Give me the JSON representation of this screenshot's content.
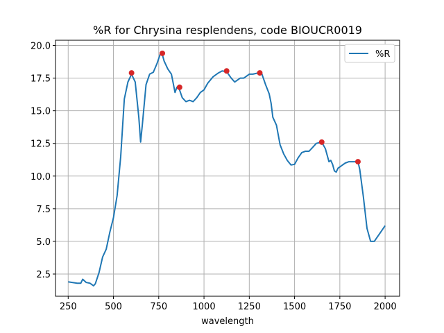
{
  "chart_data": {
    "type": "line",
    "title": "%R for Chrysina resplendens, code BIOUCR0019",
    "xlabel": "wavelength",
    "ylabel": "",
    "xlim": [
      180,
      2080
    ],
    "ylim": [
      0.8,
      20.4
    ],
    "grid": true,
    "legend_placement": "top-right",
    "x_ticks": [
      250,
      500,
      750,
      1000,
      1250,
      1500,
      1750,
      2000
    ],
    "y_ticks": [
      2.5,
      5.0,
      7.5,
      10.0,
      12.5,
      15.0,
      17.5,
      20.0
    ],
    "x_tick_labels": [
      "250",
      "500",
      "750",
      "1000",
      "1250",
      "1500",
      "1750",
      "2000"
    ],
    "y_tick_labels": [
      "2.5",
      "5.0",
      "7.5",
      "10.0",
      "12.5",
      "15.0",
      "17.5",
      "20.0"
    ],
    "series": [
      {
        "name": "%R",
        "color": "#1f77b4",
        "x": [
          250,
          300,
          320,
          330,
          350,
          370,
          390,
          400,
          420,
          440,
          460,
          480,
          500,
          520,
          540,
          560,
          580,
          600,
          620,
          640,
          650,
          660,
          680,
          700,
          720,
          740,
          760,
          770,
          780,
          800,
          820,
          840,
          850,
          860,
          870,
          880,
          900,
          920,
          940,
          960,
          980,
          1000,
          1020,
          1050,
          1080,
          1100,
          1125,
          1150,
          1170,
          1200,
          1220,
          1250,
          1270,
          1300,
          1320,
          1340,
          1360,
          1370,
          1380,
          1400,
          1420,
          1440,
          1460,
          1480,
          1500,
          1520,
          1540,
          1560,
          1580,
          1600,
          1620,
          1650,
          1670,
          1690,
          1700,
          1710,
          1720,
          1730,
          1740,
          1760,
          1780,
          1800,
          1820,
          1840,
          1850,
          1860,
          1880,
          1890,
          1900,
          1920,
          1940,
          1960,
          1980,
          2000
        ],
        "y": [
          1.9,
          1.8,
          1.8,
          2.1,
          1.85,
          1.8,
          1.6,
          1.75,
          2.6,
          3.8,
          4.4,
          5.7,
          6.8,
          8.5,
          11.5,
          15.9,
          17.2,
          17.8,
          17.2,
          14.5,
          12.6,
          14.0,
          17.0,
          17.8,
          17.95,
          18.6,
          19.4,
          19.3,
          18.8,
          18.2,
          17.8,
          16.4,
          16.8,
          16.8,
          16.4,
          16.0,
          15.7,
          15.8,
          15.7,
          16.0,
          16.4,
          16.6,
          17.1,
          17.6,
          17.9,
          18.05,
          18.0,
          17.5,
          17.2,
          17.5,
          17.5,
          17.8,
          17.8,
          17.9,
          17.8,
          17.0,
          16.3,
          15.6,
          14.5,
          13.9,
          12.4,
          11.7,
          11.2,
          10.85,
          10.9,
          11.4,
          11.8,
          11.9,
          11.9,
          12.2,
          12.5,
          12.6,
          12.1,
          11.1,
          11.2,
          10.9,
          10.4,
          10.3,
          10.6,
          10.8,
          11.0,
          11.1,
          11.1,
          11.1,
          11.1,
          10.5,
          8.4,
          7.2,
          6.0,
          5.0,
          5.0,
          5.4,
          5.8,
          6.2
        ]
      }
    ],
    "peak_markers": {
      "color": "#d62728",
      "x": [
        600,
        770,
        865,
        1125,
        1308,
        1650,
        1850
      ],
      "y": [
        17.9,
        19.4,
        16.8,
        18.05,
        17.9,
        12.6,
        11.1
      ]
    }
  }
}
